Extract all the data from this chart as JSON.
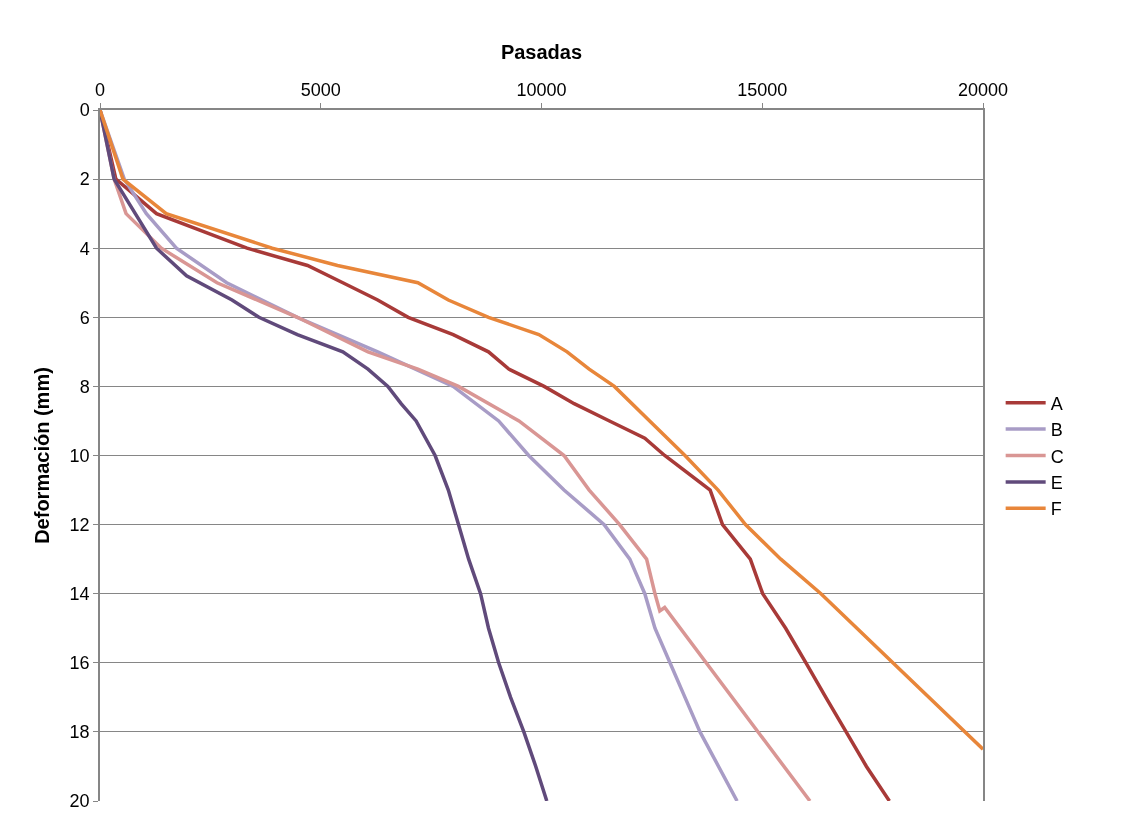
{
  "chart_data": {
    "type": "line",
    "xlabel": "Pasadas",
    "ylabel": "Deformación (mm)",
    "xlim": [
      0,
      20000
    ],
    "xticks": [
      0,
      5000,
      10000,
      15000,
      20000
    ],
    "ylim": [
      20,
      0
    ],
    "yticks": [
      0,
      2,
      4,
      6,
      8,
      10,
      12,
      14,
      16,
      18,
      20
    ],
    "grid": "y",
    "legend": "right",
    "marker": "none",
    "line_style": "solid",
    "series": [
      {
        "name": "A",
        "color": "#a83a38",
        "x": [
          0,
          360,
          1280,
          3330,
          4700,
          5500,
          6290,
          6980,
          8000,
          8800,
          9260,
          10060,
          10740,
          11540,
          12340,
          12790,
          13820,
          14100,
          14730,
          15010,
          15530,
          15990,
          16440,
          16900,
          17360,
          17880
        ],
        "values": [
          0,
          2,
          3,
          4,
          4.5,
          5,
          5.5,
          6,
          6.5,
          7,
          7.5,
          8,
          8.5,
          9,
          9.5,
          10,
          11,
          12,
          13,
          14,
          15,
          16,
          17,
          18,
          19,
          20
        ]
      },
      {
        "name": "B",
        "color": "#a89cc6",
        "x": [
          0,
          550,
          1050,
          1730,
          2870,
          4470,
          6290,
          8000,
          9030,
          9710,
          10510,
          11420,
          12000,
          12340,
          12570,
          12910,
          13250,
          13590,
          14430
        ],
        "values": [
          0,
          2,
          3,
          4,
          5,
          6,
          7,
          8,
          9,
          10,
          11,
          12,
          13,
          14,
          15,
          16,
          17,
          18,
          20
        ]
      },
      {
        "name": "C",
        "color": "#d99694",
        "x": [
          0,
          320,
          590,
          1390,
          2650,
          4470,
          6070,
          7200,
          8120,
          9490,
          10510,
          11080,
          11770,
          12380,
          12570,
          12680,
          12790,
          16080
        ],
        "values": [
          0,
          2,
          3,
          4,
          5,
          6,
          7,
          7.5,
          8,
          9,
          10,
          11,
          12,
          13,
          14,
          14.5,
          14.4,
          20
        ]
      },
      {
        "name": "E",
        "color": "#604a7b",
        "x": [
          0,
          320,
          1280,
          1960,
          2990,
          3600,
          4470,
          5500,
          6070,
          6520,
          6820,
          7160,
          7590,
          7890,
          8120,
          8350,
          8620,
          8800,
          9030,
          9300,
          9600,
          9870,
          10120
        ],
        "values": [
          0,
          2,
          4,
          4.8,
          5.5,
          6,
          6.5,
          7,
          7.5,
          8,
          8.5,
          9,
          10,
          11,
          12,
          13,
          14,
          15,
          16,
          17,
          18,
          19,
          20
        ]
      },
      {
        "name": "F",
        "color": "#e8863a",
        "x": [
          0,
          520,
          1500,
          3900,
          5380,
          7200,
          7890,
          8800,
          9940,
          10580,
          11080,
          11650,
          12450,
          13250,
          14000,
          14620,
          15420,
          16330,
          20000
        ],
        "values": [
          0,
          2,
          3,
          4,
          4.5,
          5,
          5.5,
          6,
          6.5,
          7,
          7.5,
          8,
          9,
          10,
          11,
          12,
          13,
          14,
          18.5
        ]
      }
    ]
  }
}
